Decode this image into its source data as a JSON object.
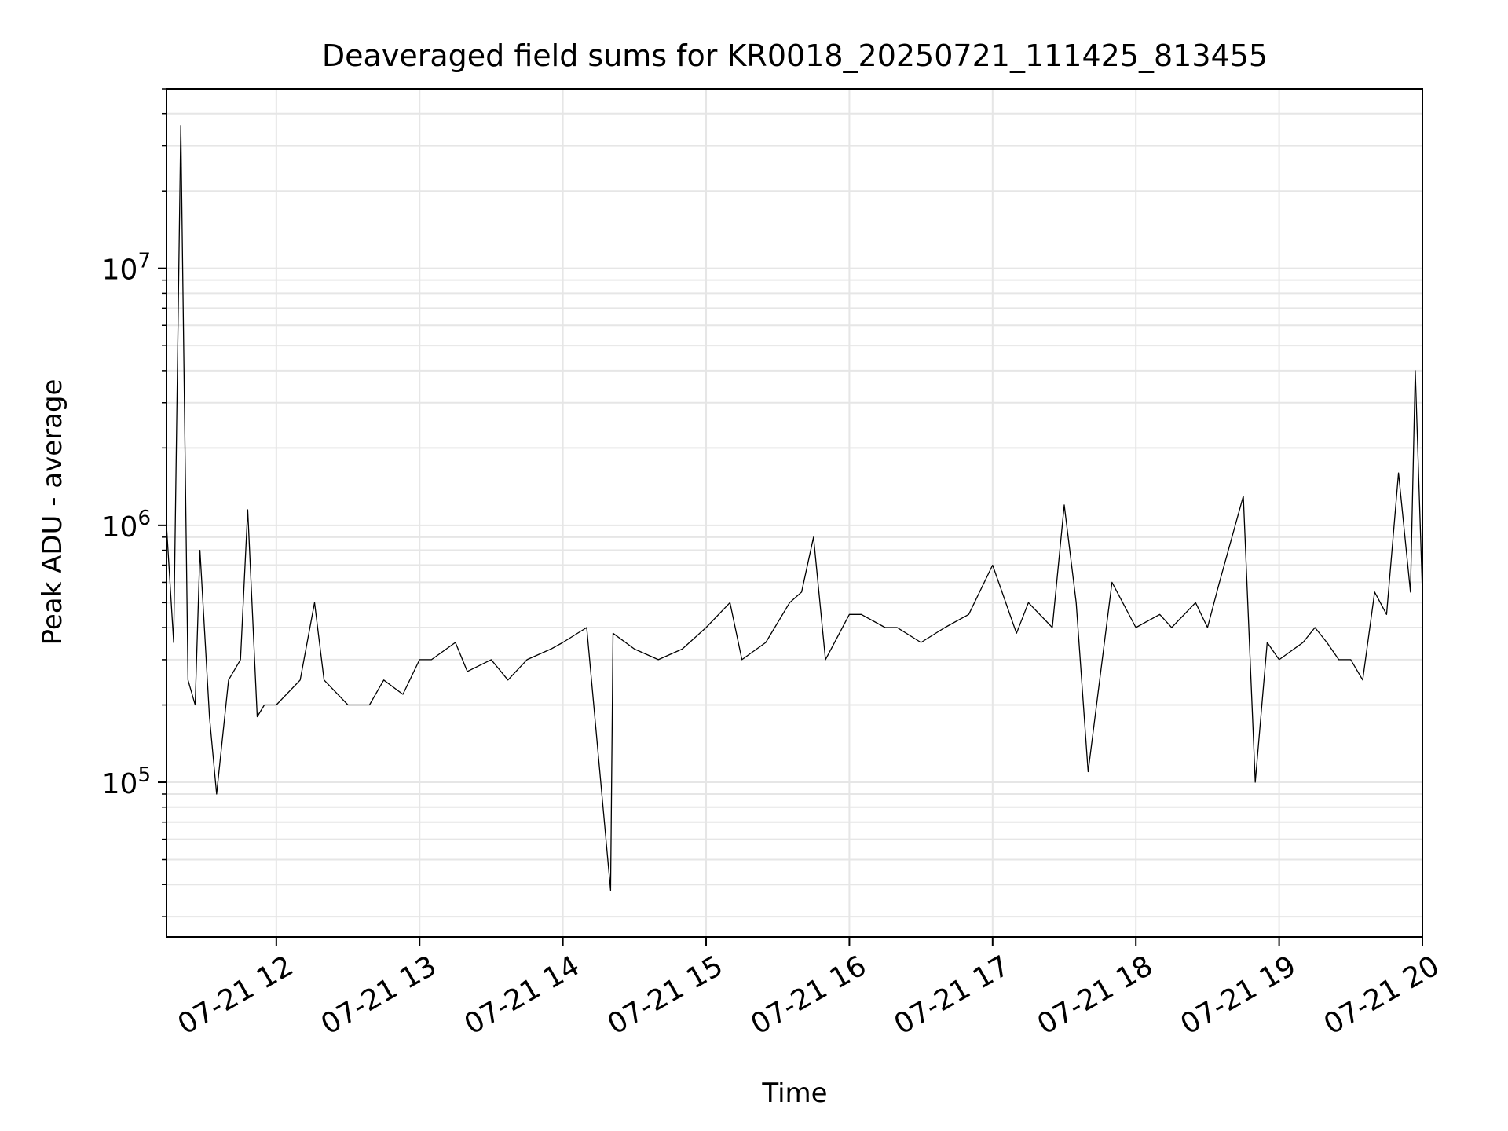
{
  "chart_data": {
    "type": "line",
    "title": "Deaveraged field sums for KR0018_20250721_111425_813455",
    "xlabel": "Time",
    "ylabel": "Peak ADU - average",
    "yscale": "log",
    "ylim": [
      25000,
      50000000
    ],
    "xlim": [
      "2025-07-21 11:14",
      "2025-07-21 20:00"
    ],
    "grid": true,
    "line_color": "#000000",
    "x_ticks": [
      {
        "label": "07-21 12",
        "value": "2025-07-21 12:00"
      },
      {
        "label": "07-21 13",
        "value": "2025-07-21 13:00"
      },
      {
        "label": "07-21 14",
        "value": "2025-07-21 14:00"
      },
      {
        "label": "07-21 15",
        "value": "2025-07-21 15:00"
      },
      {
        "label": "07-21 16",
        "value": "2025-07-21 16:00"
      },
      {
        "label": "07-21 17",
        "value": "2025-07-21 17:00"
      },
      {
        "label": "07-21 18",
        "value": "2025-07-21 18:00"
      },
      {
        "label": "07-21 19",
        "value": "2025-07-21 19:00"
      },
      {
        "label": "07-21 20",
        "value": "2025-07-21 20:00"
      }
    ],
    "y_ticks": [
      {
        "base": "10",
        "exp": "5",
        "value": 100000
      },
      {
        "base": "10",
        "exp": "6",
        "value": 1000000
      },
      {
        "base": "10",
        "exp": "7",
        "value": 10000000
      }
    ],
    "series": [
      {
        "x": [
          "2025-07-21 11:14",
          "2025-07-21 11:17",
          "2025-07-21 11:20",
          "2025-07-21 11:23",
          "2025-07-21 11:26",
          "2025-07-21 11:28",
          "2025-07-21 11:32",
          "2025-07-21 11:35",
          "2025-07-21 11:40",
          "2025-07-21 11:45",
          "2025-07-21 11:48",
          "2025-07-21 11:52",
          "2025-07-21 11:55",
          "2025-07-21 12:00",
          "2025-07-21 12:10",
          "2025-07-21 12:16",
          "2025-07-21 12:20",
          "2025-07-21 12:30",
          "2025-07-21 12:39",
          "2025-07-21 12:45",
          "2025-07-21 12:53",
          "2025-07-21 13:00",
          "2025-07-21 13:05",
          "2025-07-21 13:15",
          "2025-07-21 13:20",
          "2025-07-21 13:30",
          "2025-07-21 13:37",
          "2025-07-21 13:45",
          "2025-07-21 13:55",
          "2025-07-21 14:00",
          "2025-07-21 14:10",
          "2025-07-21 14:20",
          "2025-07-21 14:21",
          "2025-07-21 14:30",
          "2025-07-21 14:40",
          "2025-07-21 14:50",
          "2025-07-21 15:00",
          "2025-07-21 15:10",
          "2025-07-21 15:15",
          "2025-07-21 15:25",
          "2025-07-21 15:35",
          "2025-07-21 15:40",
          "2025-07-21 15:45",
          "2025-07-21 15:50",
          "2025-07-21 16:00",
          "2025-07-21 16:05",
          "2025-07-21 16:15",
          "2025-07-21 16:20",
          "2025-07-21 16:30",
          "2025-07-21 16:40",
          "2025-07-21 16:50",
          "2025-07-21 17:00",
          "2025-07-21 17:10",
          "2025-07-21 17:15",
          "2025-07-21 17:25",
          "2025-07-21 17:30",
          "2025-07-21 17:35",
          "2025-07-21 17:40",
          "2025-07-21 17:50",
          "2025-07-21 18:00",
          "2025-07-21 18:10",
          "2025-07-21 18:15",
          "2025-07-21 18:25",
          "2025-07-21 18:30",
          "2025-07-21 18:35",
          "2025-07-21 18:45",
          "2025-07-21 18:50",
          "2025-07-21 18:55",
          "2025-07-21 19:00",
          "2025-07-21 19:10",
          "2025-07-21 19:15",
          "2025-07-21 19:20",
          "2025-07-21 19:25",
          "2025-07-21 19:30",
          "2025-07-21 19:35",
          "2025-07-21 19:40",
          "2025-07-21 19:45",
          "2025-07-21 19:50",
          "2025-07-21 19:55",
          "2025-07-21 19:57",
          "2025-07-21 20:00"
        ],
        "y": [
          1000000,
          350000,
          36000000,
          250000,
          200000,
          800000,
          180000,
          90000,
          250000,
          300000,
          1150000,
          180000,
          200000,
          200000,
          250000,
          500000,
          250000,
          200000,
          200000,
          250000,
          220000,
          300000,
          300000,
          350000,
          270000,
          300000,
          250000,
          300000,
          330000,
          350000,
          400000,
          38000,
          380000,
          330000,
          300000,
          330000,
          400000,
          500000,
          300000,
          350000,
          500000,
          550000,
          900000,
          300000,
          450000,
          450000,
          400000,
          400000,
          350000,
          400000,
          450000,
          700000,
          380000,
          500000,
          400000,
          1200000,
          500000,
          110000,
          600000,
          400000,
          450000,
          400000,
          500000,
          400000,
          600000,
          1300000,
          100000,
          350000,
          300000,
          350000,
          400000,
          350000,
          300000,
          300000,
          250000,
          550000,
          450000,
          1600000,
          550000,
          4000000,
          550000
        ]
      }
    ]
  }
}
